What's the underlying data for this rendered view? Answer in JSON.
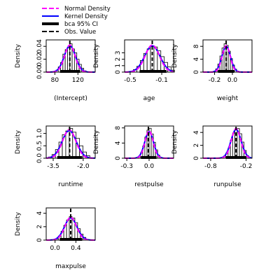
{
  "legend": {
    "items": [
      {
        "label": "Normal Density",
        "color": "#ff00ff",
        "dash": true,
        "width": 2
      },
      {
        "label": "Kernel Density",
        "color": "#0000ff",
        "dash": false,
        "width": 2
      },
      {
        "label": "bca 95% CI",
        "color": "#000000",
        "dash": false,
        "width": 4
      },
      {
        "label": "Obs. Value",
        "color": "#000000",
        "dash": true,
        "width": 2
      }
    ]
  },
  "chart_data": [
    {
      "type": "histogram",
      "xlabel": "(Intercept)",
      "ylabel": "Density",
      "xlim": [
        65,
        150
      ],
      "xticks": [
        80,
        120
      ],
      "ylim": [
        0,
        0.05
      ],
      "yticks": [
        "0.00",
        "0.02",
        "0.04"
      ],
      "mean": 106,
      "sd": 9,
      "peak": 0.042,
      "obs": 106,
      "ci": [
        89,
        124
      ],
      "bars": [
        0.001,
        0.003,
        0.008,
        0.015,
        0.028,
        0.035,
        0.038,
        0.044,
        0.036,
        0.03,
        0.02,
        0.012,
        0.006,
        0.002
      ]
    },
    {
      "type": "histogram",
      "xlabel": "age",
      "ylabel": "Density",
      "xlim": [
        -0.57,
        0.05
      ],
      "xticks": [
        -0.5,
        -0.1
      ],
      "ylim": [
        0,
        5
      ],
      "yticks": [
        "0",
        "1",
        "2",
        "3"
      ],
      "mean": -0.22,
      "sd": 0.09,
      "peak": 4.2,
      "obs": -0.22,
      "ci": [
        -0.38,
        -0.04
      ],
      "bars": [
        0.1,
        0.4,
        0.9,
        1.8,
        2.9,
        3.6,
        4.0,
        3.9,
        3.3,
        2.4,
        1.5,
        0.8,
        0.3
      ]
    },
    {
      "type": "histogram",
      "xlabel": "weight",
      "ylabel": "Density",
      "xlim": [
        -0.33,
        0.22
      ],
      "xticks": [
        -0.2,
        0.0
      ],
      "ylim": [
        0,
        10
      ],
      "yticks": [
        "0",
        "4",
        "8"
      ],
      "mean": -0.07,
      "sd": 0.045,
      "peak": 8.2,
      "obs": -0.07,
      "ci": [
        -0.16,
        0.02
      ],
      "bars": [
        0.3,
        1.0,
        2.5,
        5.0,
        7.5,
        8.8,
        8.3,
        6.5,
        4.2,
        2.2,
        0.9,
        0.3
      ]
    },
    {
      "type": "histogram",
      "xlabel": "runtime",
      "ylabel": "Density",
      "xlim": [
        -3.85,
        -1.4
      ],
      "xticks": [
        -3.5,
        -2.0
      ],
      "ylim": [
        0,
        1.3
      ],
      "yticks": [
        "0.0",
        "0.5",
        "1.0"
      ],
      "mean": -2.7,
      "sd": 0.33,
      "peak": 1.15,
      "obs": -2.68,
      "ci": [
        -3.3,
        -2.05
      ],
      "bars": [
        0.05,
        0.15,
        0.35,
        0.65,
        0.95,
        1.1,
        1.2,
        1.05,
        0.8,
        0.5,
        0.25,
        0.1
      ]
    },
    {
      "type": "histogram",
      "xlabel": "restpulse",
      "ylabel": "Density",
      "xlim": [
        -0.33,
        0.33
      ],
      "xticks": [
        -0.3,
        0.0
      ],
      "ylim": [
        0,
        8.5
      ],
      "yticks": [
        "0",
        "4",
        "8"
      ],
      "mean": 0.0,
      "sd": 0.055,
      "peak": 7.2,
      "obs": -0.01,
      "ci": [
        -0.11,
        0.1
      ],
      "bars": [
        0.1,
        0.5,
        1.5,
        3.2,
        5.6,
        7.4,
        7.9,
        6.4,
        4.2,
        2.2,
        0.8,
        0.2
      ]
    },
    {
      "type": "histogram",
      "xlabel": "runpulse",
      "ylabel": "Density",
      "xlim": [
        -0.93,
        -0.1
      ],
      "xticks": [
        -0.8,
        -0.2
      ],
      "ylim": [
        0,
        5
      ],
      "yticks": [
        "0",
        "2",
        "4"
      ],
      "mean": -0.37,
      "sd": 0.08,
      "peak": 4.6,
      "obs": -0.37,
      "ci": [
        -0.54,
        -0.2
      ],
      "bars": [
        0.1,
        0.3,
        0.8,
        1.6,
        2.8,
        3.9,
        4.5,
        4.6,
        3.8,
        2.5,
        1.2,
        0.4,
        0.1
      ]
    },
    {
      "type": "histogram",
      "xlabel": "maxpulse",
      "ylabel": "Density",
      "xlim": [
        -0.17,
        0.77
      ],
      "xticks": [
        0.0,
        0.4
      ],
      "ylim": [
        0,
        4.8
      ],
      "yticks": [
        "0",
        "2",
        "4"
      ],
      "mean": 0.3,
      "sd": 0.11,
      "peak": 3.4,
      "obs": 0.3,
      "ci": [
        0.09,
        0.52
      ],
      "bars": [
        0.05,
        0.2,
        0.6,
        1.3,
        2.2,
        3.0,
        3.5,
        3.3,
        2.6,
        1.7,
        0.9,
        0.4,
        0.1
      ]
    }
  ]
}
